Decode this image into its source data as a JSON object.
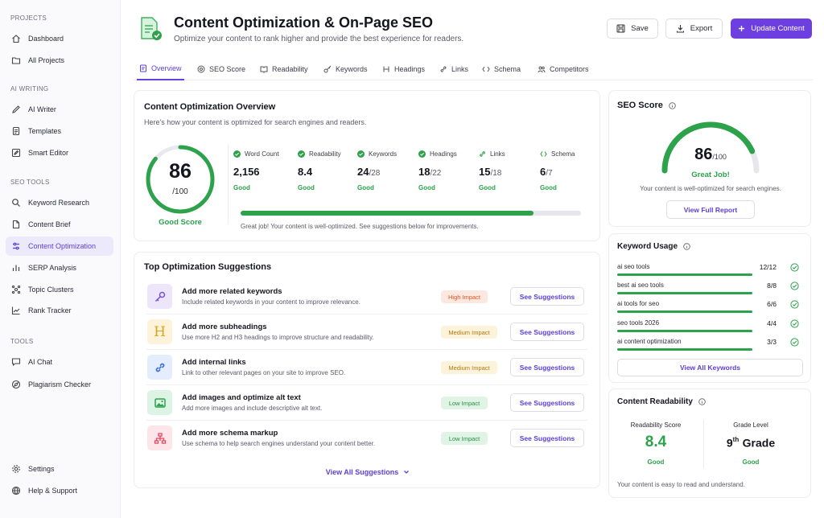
{
  "sidebar": {
    "sections": {
      "projects": "PROJECTS",
      "ai_writing": "AI WRITING",
      "seo_tools": "SEO TOOLS",
      "tools": "TOOLS"
    },
    "items": [
      {
        "label": "Dashboard",
        "icon": "home-icon"
      },
      {
        "label": "All Projects",
        "icon": "folder-icon"
      },
      {
        "label": "AI Writer",
        "icon": "pencil-icon"
      },
      {
        "label": "Templates",
        "icon": "document-icon"
      },
      {
        "label": "Smart Editor",
        "icon": "edit-square-icon"
      },
      {
        "label": "Keyword Research",
        "icon": "search-icon"
      },
      {
        "label": "Content Brief",
        "icon": "file-icon"
      },
      {
        "label": "Content Optimization",
        "icon": "sliders-icon"
      },
      {
        "label": "SERP Analysis",
        "icon": "chart-icon"
      },
      {
        "label": "Topic Clusters",
        "icon": "cluster-icon"
      },
      {
        "label": "Rank Tracker",
        "icon": "trend-icon"
      },
      {
        "label": "AI Chat",
        "icon": "chat-icon"
      },
      {
        "label": "Plagiarism Checker",
        "icon": "compass-icon"
      },
      {
        "label": "Settings",
        "icon": "gear-icon"
      },
      {
        "label": "Help & Support",
        "icon": "globe-icon"
      }
    ]
  },
  "header": {
    "title": "Content Optimization & On-Page SEO",
    "subtitle": "Optimize your content to rank higher and provide the best experience for readers.",
    "save_label": "Save",
    "export_label": "Export",
    "update_label": "Update Content"
  },
  "tabs": [
    "Overview",
    "SEO Score",
    "Readability",
    "Keywords",
    "Headings",
    "Links",
    "Schema",
    "Competitors"
  ],
  "overview": {
    "title": "Content Optimization Overview",
    "subtitle": "Here's how your content is optimized for search engines and readers.",
    "score": "86",
    "score_max": "/100",
    "score_label": "Good Score",
    "score_value": 0.86,
    "metrics": [
      {
        "label": "Word Count",
        "value": "2,156",
        "denom": "",
        "status": "Good"
      },
      {
        "label": "Readability",
        "value": "8.4",
        "denom": "",
        "status": "Good"
      },
      {
        "label": "Keywords",
        "value": "24",
        "denom": "/28",
        "status": "Good"
      },
      {
        "label": "Headings",
        "value": "18",
        "denom": "/22",
        "status": "Good"
      },
      {
        "label": "Links",
        "value": "15",
        "denom": "/18",
        "status": "Good"
      },
      {
        "label": "Schema",
        "value": "6",
        "denom": "/7",
        "status": "Good"
      }
    ],
    "progress": 0.86,
    "message": "Great job! Your content is well-optimized. See suggestions below for improvements."
  },
  "suggestions": {
    "title": "Top Optimization Suggestions",
    "items": [
      {
        "title": "Add more related keywords",
        "desc": "Include related keywords in your content to improve relevance.",
        "impact": "High Impact",
        "action": "See Suggestions",
        "icon": "key-icon"
      },
      {
        "title": "Add more subheadings",
        "desc": "Use more H2 and H3 headings to improve structure and readability.",
        "impact": "Medium Impact",
        "action": "See Suggestions",
        "icon": "heading-icon"
      },
      {
        "title": "Add internal links",
        "desc": "Link to other relevant pages on your site to improve SEO.",
        "impact": "Medium Impact",
        "action": "See Suggestions",
        "icon": "link-icon"
      },
      {
        "title": "Add images and optimize alt text",
        "desc": "Add more images and include descriptive alt text.",
        "impact": "Low Impact",
        "action": "See Suggestions",
        "icon": "image-icon"
      },
      {
        "title": "Add more schema markup",
        "desc": "Use schema to help search engines understand your content better.",
        "impact": "Low Impact",
        "action": "See Suggestions",
        "icon": "sitemap-icon"
      }
    ],
    "view_all": "View All Suggestions"
  },
  "seo_score": {
    "title": "SEO Score",
    "score": "86",
    "max": "/100",
    "status": "Great Job!",
    "desc": "Your content is well-optimized for search engines.",
    "button": "View Full Report",
    "value": 0.86
  },
  "keyword_usage": {
    "title": "Keyword Usage",
    "items": [
      {
        "name": "ai seo tools",
        "count": "12/12",
        "fill": 1.0
      },
      {
        "name": "best ai seo tools",
        "count": "8/8",
        "fill": 1.0
      },
      {
        "name": "ai tools for seo",
        "count": "6/6",
        "fill": 1.0
      },
      {
        "name": "seo tools 2026",
        "count": "4/4",
        "fill": 1.0
      },
      {
        "name": "ai content optimization",
        "count": "3/3",
        "fill": 1.0
      }
    ],
    "view_all": "View All Keywords"
  },
  "readability": {
    "title": "Content Readability",
    "score_label": "Readability Score",
    "score": "8.4",
    "score_status": "Good",
    "grade_label": "Grade Level",
    "grade_num": "9",
    "grade_suffix": "th",
    "grade_word": "Grade",
    "grade_status": "Good",
    "note": "Your content is easy to read and understand."
  },
  "colors": {
    "accent": "#6d3fe0",
    "good": "#2ca24a",
    "high": "#e0603c",
    "medium": "#c98a12",
    "low": "#2ca24a"
  }
}
